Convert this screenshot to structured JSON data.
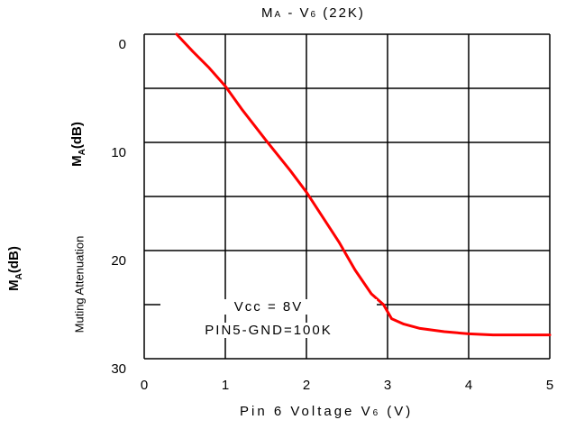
{
  "chart_data": {
    "type": "line",
    "title_main": "M",
    "title_sub": "A",
    "title_mid": " - V",
    "title_sub2": "6",
    "title_tail": " (22K)",
    "xlabel_main": "Pin 6 Voltage V",
    "xlabel_sub": "6",
    "xlabel_tail": " (V)",
    "ylabel_main": "M",
    "ylabel_sub": "A",
    "ylabel_tail": "(dB)",
    "ylabel_secondary": "Muting Attenuation",
    "x_ticks": [
      "0",
      "1",
      "2",
      "3",
      "4",
      "5"
    ],
    "y_ticks": [
      "0",
      "10",
      "20",
      "30"
    ],
    "xlim": [
      0,
      5
    ],
    "ylim": [
      0,
      30
    ],
    "y_inverted": true,
    "grid": true,
    "annotation_line1": "Vcc = 8V",
    "annotation_line2": "PIN5-GND=100K",
    "series": [
      {
        "color": "#ff0000",
        "x": [
          0.4,
          0.6,
          0.8,
          1.0,
          1.2,
          1.5,
          1.8,
          2.0,
          2.2,
          2.4,
          2.6,
          2.8,
          2.95,
          3.05,
          3.2,
          3.4,
          3.7,
          4.0,
          4.3,
          4.6,
          5.0
        ],
        "y": [
          0,
          1.6,
          3.1,
          4.8,
          6.9,
          9.8,
          12.6,
          14.6,
          16.9,
          19.2,
          21.8,
          24.0,
          25.0,
          26.3,
          26.8,
          27.2,
          27.5,
          27.7,
          27.8,
          27.8,
          27.8
        ]
      }
    ]
  }
}
